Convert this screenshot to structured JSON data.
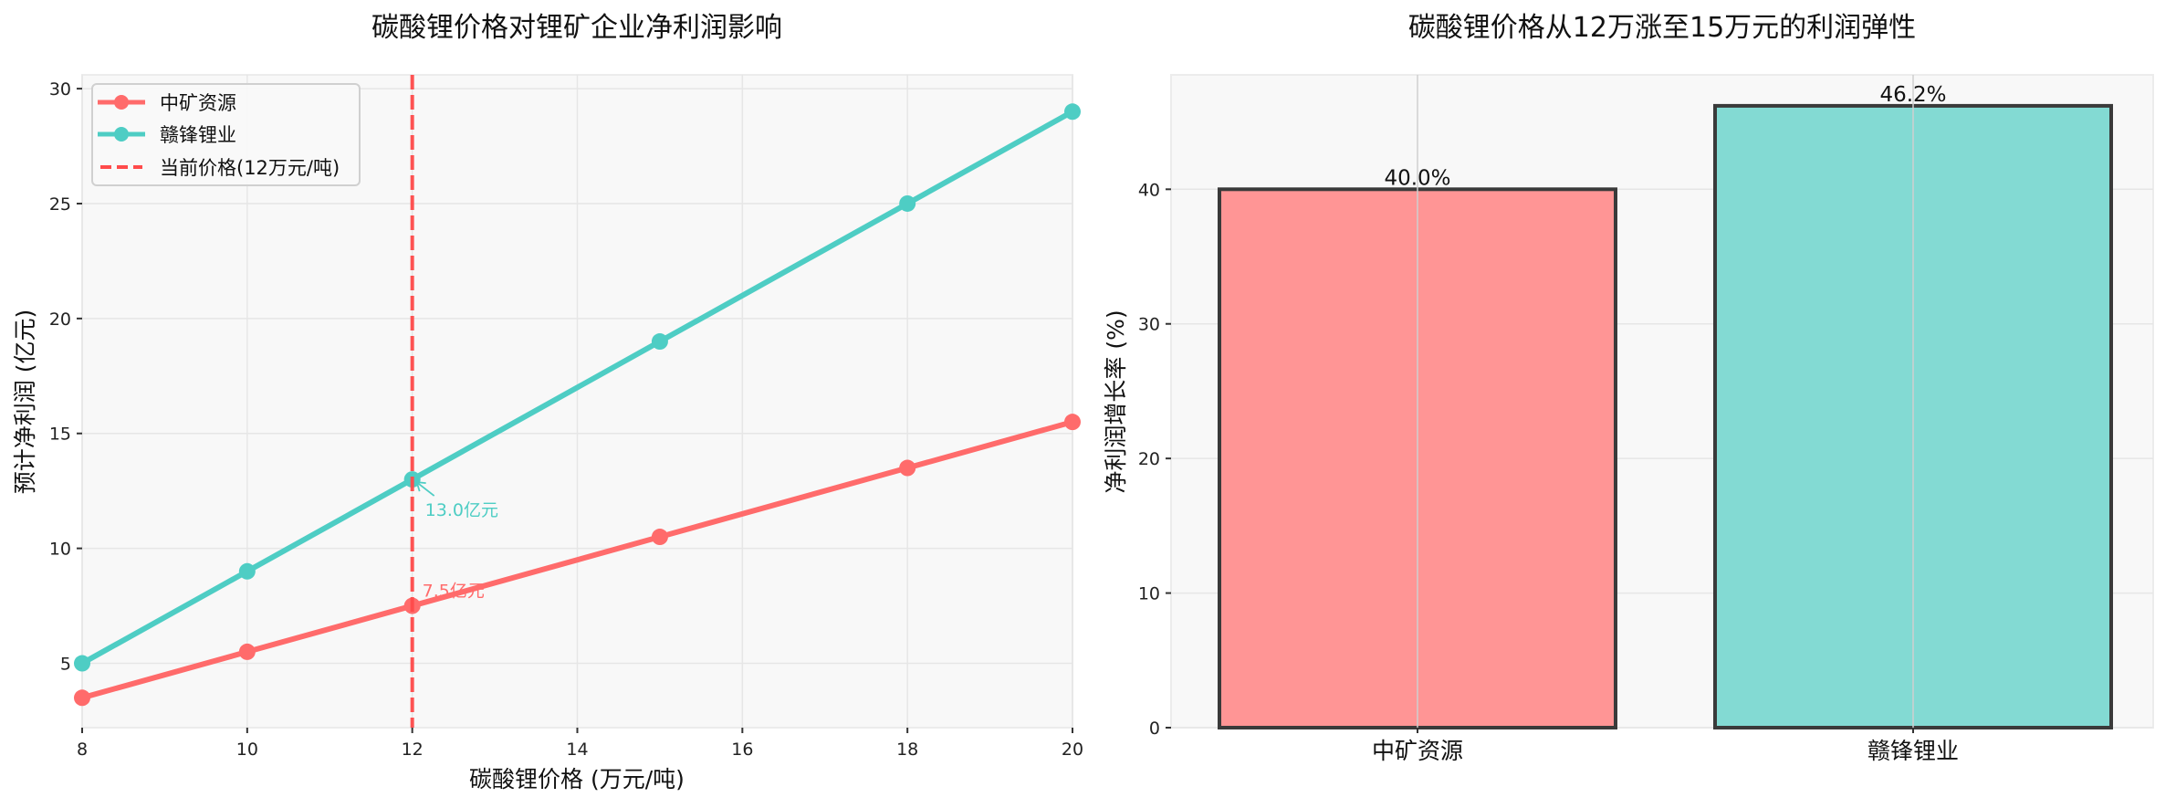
{
  "chart_data": [
    {
      "type": "line",
      "title": "碳酸锂价格对锂矿企业净利润影响",
      "xlabel": "碳酸锂价格 (万元/吨)",
      "ylabel": "预计净利润 (亿元)",
      "xlim": [
        8,
        20
      ],
      "ylim": [
        2.2,
        30.6
      ],
      "xticks": [
        8,
        10,
        12,
        14,
        16,
        18,
        20
      ],
      "yticks": [
        5,
        10,
        15,
        20,
        25,
        30
      ],
      "grid": true,
      "legend_position": "upper left",
      "x": [
        8,
        10,
        12,
        15,
        18,
        20
      ],
      "series": [
        {
          "name": "中矿资源",
          "color": "#FF6B6B",
          "values": [
            3.5,
            5.5,
            7.5,
            10.5,
            13.5,
            15.5
          ]
        },
        {
          "name": "赣锋锂业",
          "color": "#4ECDC4",
          "values": [
            5.0,
            9.0,
            13.0,
            19.0,
            25.0,
            29.0
          ]
        }
      ],
      "reference_line": {
        "type": "vertical",
        "x": 12,
        "label": "当前价格(12万元/吨)",
        "color": "#FF4B4B",
        "style": "dashed"
      },
      "annotations": [
        {
          "text": "7.5亿元",
          "x": 12,
          "y": 7.5,
          "color": "#FF6B6B"
        },
        {
          "text": "13.0亿元",
          "x": 12,
          "y": 13.0,
          "color": "#4ECDC4",
          "arrow": true
        }
      ]
    },
    {
      "type": "bar",
      "title": "碳酸锂价格从12万涨至15万元的利润弹性",
      "xlabel": "",
      "ylabel": "净利润增长率 (%)",
      "categories": [
        "中矿资源",
        "赣锋锂业"
      ],
      "values": [
        40.0,
        46.2
      ],
      "value_labels": [
        "40.0%",
        "46.2%"
      ],
      "colors": [
        "#FF9595",
        "#83DAD3"
      ],
      "edge_color": "#3a3a3a",
      "ylim": [
        0,
        48.5
      ],
      "yticks": [
        0,
        10,
        20,
        30,
        40
      ],
      "grid": true
    }
  ]
}
